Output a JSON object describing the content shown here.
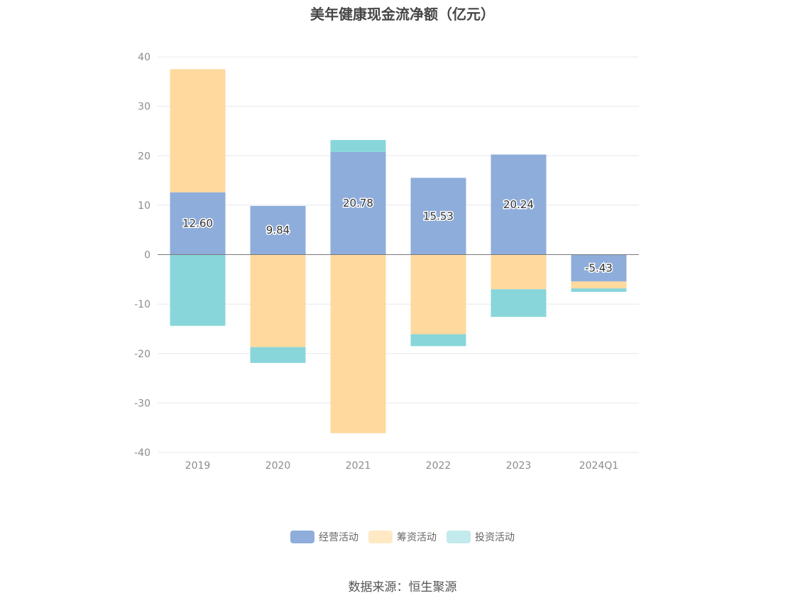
{
  "chart_data": {
    "type": "bar",
    "stacked": true,
    "title": "美年健康现金流净额（亿元）",
    "xlabel": "",
    "ylabel": "",
    "ylim": [
      -40,
      40
    ],
    "yticks": [
      40,
      30,
      20,
      10,
      0,
      -10,
      -20,
      -30,
      -40
    ],
    "grid": true,
    "legend_position": "bottom",
    "categories": [
      "2019",
      "2020",
      "2021",
      "2022",
      "2023",
      "2024Q1"
    ],
    "series": [
      {
        "name": "经营活动",
        "color": "#8eaddb",
        "values": [
          12.6,
          9.84,
          20.78,
          15.53,
          20.24,
          -5.43
        ],
        "labeled": true
      },
      {
        "name": "筹资活动",
        "color": "#ffd99d",
        "values": [
          24.9,
          -18.7,
          -36.1,
          -16.1,
          -7.0,
          -1.4
        ],
        "labeled": false
      },
      {
        "name": "投资活动",
        "color": "#88d6da",
        "values": [
          -14.4,
          -3.2,
          2.4,
          -2.4,
          -5.6,
          -0.7
        ],
        "labeled": false
      }
    ],
    "data_labels": [
      "12.60",
      "9.84",
      "20.78",
      "15.53",
      "20.24",
      "-5.43"
    ]
  },
  "legend": [
    {
      "label": "经营活动",
      "color": "#8eaddb"
    },
    {
      "label": "筹资活动",
      "color": "#ffe9c4"
    },
    {
      "label": "投资活动",
      "color": "#c3eaec"
    }
  ],
  "source": "数据来源：恒生聚源"
}
